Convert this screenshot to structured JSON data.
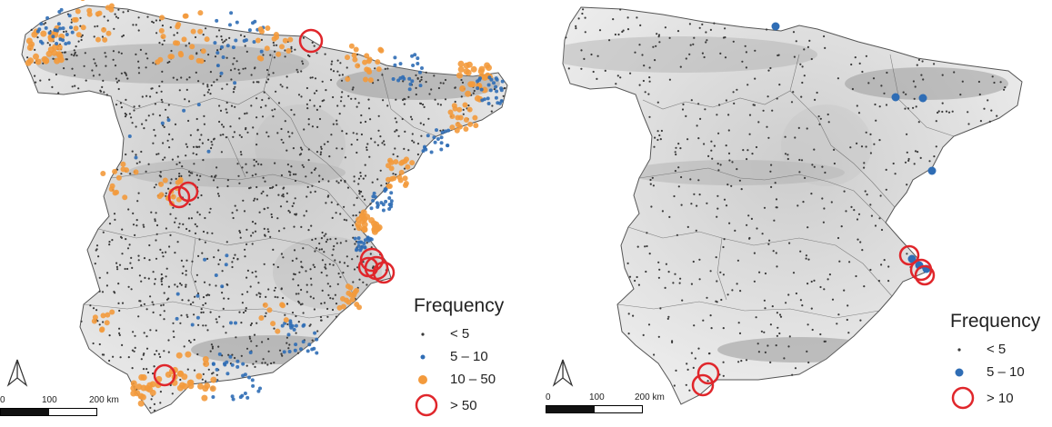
{
  "left_map": {
    "legend": {
      "title": "Frequency",
      "items": [
        {
          "label": "< 5",
          "color": "#3a3a3a"
        },
        {
          "label": "5 – 10",
          "color": "#2f6db5"
        },
        {
          "label": "10 – 50",
          "color": "#f39a3c"
        },
        {
          "label": "> 50",
          "color": "#e0262b"
        }
      ]
    },
    "scale": {
      "labels": [
        "0",
        "100",
        "200 km"
      ]
    }
  },
  "right_map": {
    "legend": {
      "title": "Frequency",
      "items": [
        {
          "label": "< 5",
          "color": "#3a3a3a"
        },
        {
          "label": "5 – 10",
          "color": "#2f6db5"
        },
        {
          "label": "> 10",
          "color": "#e0262b"
        }
      ]
    },
    "scale": {
      "labels": [
        "0",
        "100",
        "200 km"
      ]
    }
  },
  "icons": {
    "north_arrow": "north-arrow-icon"
  }
}
